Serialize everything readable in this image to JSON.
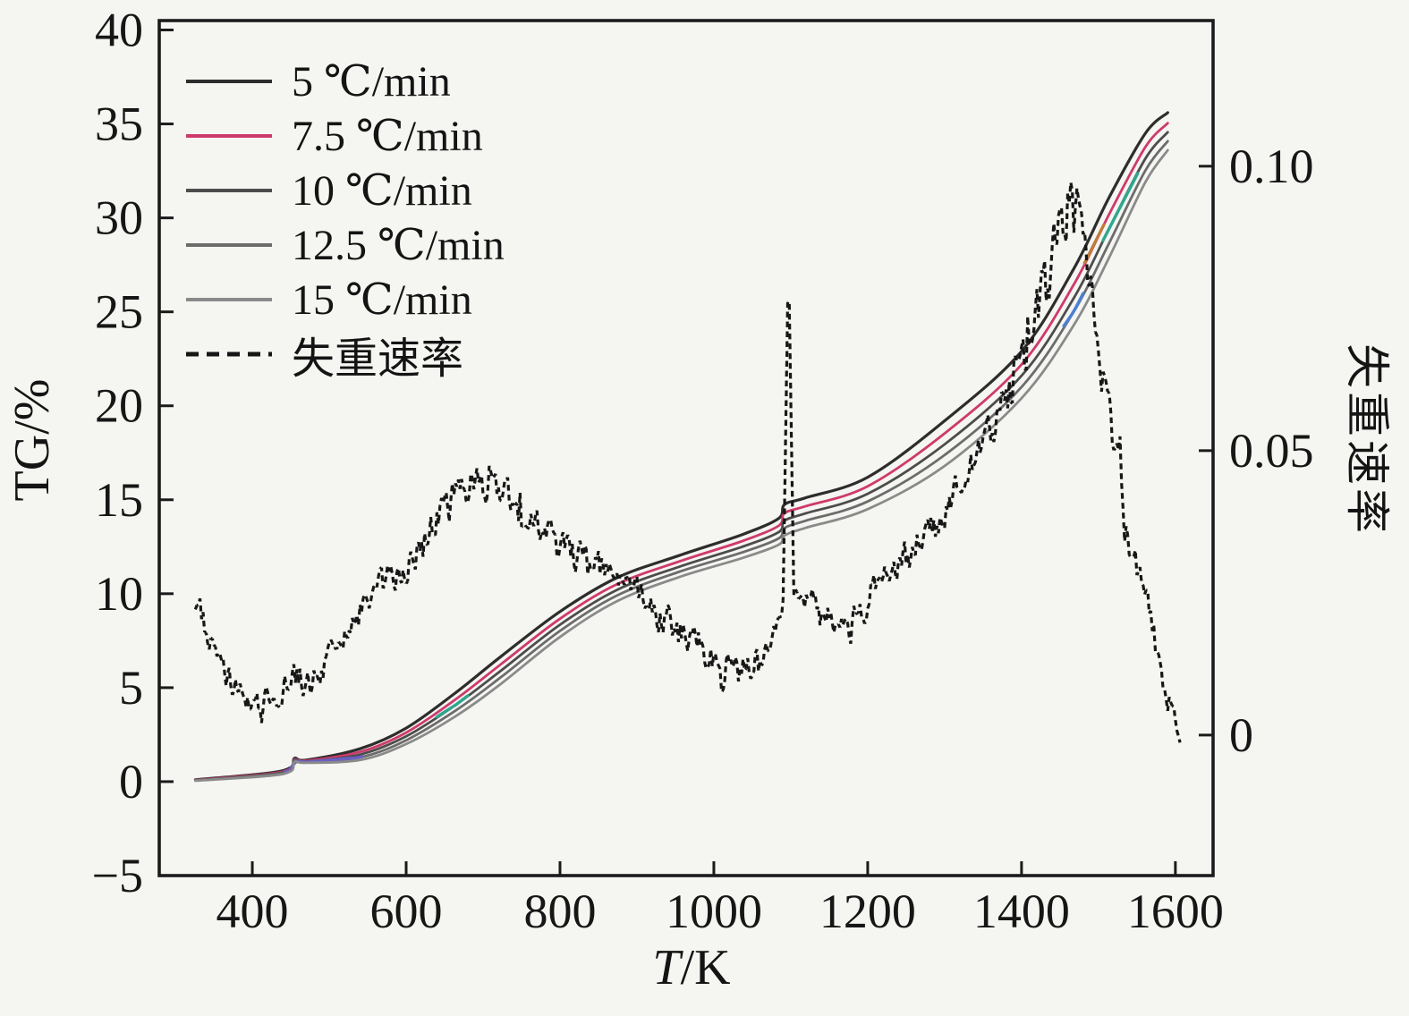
{
  "figure": {
    "background": "#f5f5f2",
    "axis_color": "#1b1b1b",
    "x_axis": {
      "title_var": "T",
      "title_unit": "/K",
      "ticks": [
        {
          "label": "400",
          "value": 400
        },
        {
          "label": "600",
          "value": 600
        },
        {
          "label": "800",
          "value": 800
        },
        {
          "label": "1000",
          "value": 1000
        },
        {
          "label": "1200",
          "value": 1200
        },
        {
          "label": "1400",
          "value": 1400
        },
        {
          "label": "1600",
          "value": 1600
        }
      ]
    },
    "y_left": {
      "title": "TG/%",
      "ticks": [
        {
          "label": "40",
          "value": 40
        },
        {
          "label": "35",
          "value": 35
        },
        {
          "label": "30",
          "value": 30
        },
        {
          "label": "25",
          "value": 25
        },
        {
          "label": "20",
          "value": 20
        },
        {
          "label": "15",
          "value": 15
        },
        {
          "label": "10",
          "value": 10
        },
        {
          "label": "5",
          "value": 5
        },
        {
          "label": "0",
          "value": 0
        },
        {
          "label": "−5",
          "value": -5
        }
      ]
    },
    "y_right": {
      "title": "失重速率",
      "ticks": [
        {
          "label": "0.10",
          "value": 0.1
        },
        {
          "label": "0.05",
          "value": 0.05
        },
        {
          "label": "0",
          "value": 0
        }
      ]
    }
  },
  "legend": {
    "items": [
      {
        "label": "5 ℃/min",
        "color": "#2d2d2d",
        "dash": false
      },
      {
        "label": "7.5 ℃/min",
        "color": "#ce3a6b",
        "dash": false
      },
      {
        "label": "10 ℃/min",
        "color": "#4c4c4c",
        "dash": false
      },
      {
        "label": "12.5 ℃/min",
        "color": "#6c6c6c",
        "dash": false
      },
      {
        "label": "15 ℃/min",
        "color": "#8a8a8a",
        "dash": false
      },
      {
        "label": "失重速率",
        "color": "#161616",
        "dash": true
      }
    ]
  },
  "chart_data": {
    "type": "line",
    "title": "",
    "xlabel": "T/K",
    "ylabel_left": "TG/%",
    "ylabel_right": "失重速率",
    "xlim": [
      279,
      1649
    ],
    "ylim_left": [
      -5,
      40.5
    ],
    "ylim_right": [
      -0.0247,
      0.1256
    ],
    "grid": false,
    "legend_position": "upper-left",
    "series": [
      {
        "name": "5 ℃/min",
        "axis": "left",
        "color": "#2d2d2d",
        "width": 3.2,
        "accents": [],
        "points": [
          [
            326,
            0.1
          ],
          [
            420,
            0.45
          ],
          [
            450,
            0.75
          ],
          [
            455,
            1.25
          ],
          [
            470,
            1.15
          ],
          [
            540,
            1.75
          ],
          [
            600,
            2.85
          ],
          [
            665,
            4.75
          ],
          [
            723,
            6.65
          ],
          [
            800,
            9.05
          ],
          [
            874,
            10.85
          ],
          [
            956,
            12.05
          ],
          [
            1037,
            13.15
          ],
          [
            1084,
            14.0
          ],
          [
            1092,
            14.75
          ],
          [
            1119,
            15.1
          ],
          [
            1200,
            16.2
          ],
          [
            1300,
            19.2
          ],
          [
            1400,
            22.9
          ],
          [
            1468,
            27.3
          ],
          [
            1514,
            31.1
          ],
          [
            1561,
            34.5
          ],
          [
            1590,
            35.6
          ]
        ]
      },
      {
        "name": "7.5 ℃/min",
        "axis": "left",
        "color": "#ce3a6b",
        "width": 2.8,
        "accents": [
          {
            "from": 1482,
            "to": 1508,
            "color": "#c07a3a"
          }
        ],
        "points": [
          [
            326,
            0.09
          ],
          [
            420,
            0.41
          ],
          [
            450,
            0.69
          ],
          [
            455,
            1.19
          ],
          [
            470,
            1.11
          ],
          [
            540,
            1.58
          ],
          [
            600,
            2.61
          ],
          [
            665,
            4.4
          ],
          [
            723,
            6.24
          ],
          [
            800,
            8.67
          ],
          [
            874,
            10.5
          ],
          [
            956,
            11.73
          ],
          [
            1037,
            12.8
          ],
          [
            1084,
            13.61
          ],
          [
            1092,
            14.29
          ],
          [
            1119,
            14.65
          ],
          [
            1200,
            15.72
          ],
          [
            1300,
            18.53
          ],
          [
            1400,
            22.2
          ],
          [
            1468,
            26.46
          ],
          [
            1514,
            30.2
          ],
          [
            1561,
            33.77
          ],
          [
            1590,
            35.04
          ]
        ]
      },
      {
        "name": "10 ℃/min",
        "axis": "left",
        "color": "#4c4c4c",
        "width": 2.8,
        "accents": [
          {
            "from": 640,
            "to": 680,
            "color": "#2fa78f"
          },
          {
            "from": 1506,
            "to": 1552,
            "color": "#2fa78f"
          }
        ],
        "points": [
          [
            326,
            0.07
          ],
          [
            420,
            0.37
          ],
          [
            450,
            0.65
          ],
          [
            455,
            1.15
          ],
          [
            470,
            1.07
          ],
          [
            540,
            1.44
          ],
          [
            600,
            2.41
          ],
          [
            665,
            4.1
          ],
          [
            723,
            5.9
          ],
          [
            800,
            8.35
          ],
          [
            874,
            10.2
          ],
          [
            956,
            11.45
          ],
          [
            1037,
            12.5
          ],
          [
            1084,
            13.27
          ],
          [
            1092,
            13.89
          ],
          [
            1119,
            14.27
          ],
          [
            1200,
            15.32
          ],
          [
            1300,
            17.95
          ],
          [
            1400,
            21.6
          ],
          [
            1468,
            25.74
          ],
          [
            1514,
            29.44
          ],
          [
            1561,
            33.15
          ],
          [
            1590,
            34.56
          ]
        ]
      },
      {
        "name": "12.5 ℃/min",
        "axis": "left",
        "color": "#6c6c6c",
        "width": 2.8,
        "accents": [
          {
            "from": 443,
            "to": 545,
            "color": "#6a5fc1"
          },
          {
            "from": 1455,
            "to": 1480,
            "color": "#4b7fd4"
          }
        ],
        "points": [
          [
            326,
            0.06
          ],
          [
            420,
            0.34
          ],
          [
            450,
            0.6
          ],
          [
            455,
            1.1
          ],
          [
            470,
            1.04
          ],
          [
            540,
            1.29
          ],
          [
            600,
            2.2
          ],
          [
            665,
            3.8
          ],
          [
            723,
            5.55
          ],
          [
            800,
            8.02
          ],
          [
            874,
            9.9
          ],
          [
            956,
            11.18
          ],
          [
            1037,
            12.2
          ],
          [
            1084,
            12.94
          ],
          [
            1092,
            13.5
          ],
          [
            1119,
            13.88
          ],
          [
            1200,
            14.91
          ],
          [
            1300,
            17.38
          ],
          [
            1400,
            21.0
          ],
          [
            1468,
            25.02
          ],
          [
            1514,
            28.67
          ],
          [
            1561,
            32.52
          ],
          [
            1590,
            34.08
          ]
        ]
      },
      {
        "name": "15 ℃/min",
        "axis": "left",
        "color": "#8a8a8a",
        "width": 2.8,
        "accents": [],
        "points": [
          [
            326,
            0.05
          ],
          [
            420,
            0.3
          ],
          [
            450,
            0.55
          ],
          [
            455,
            1.05
          ],
          [
            470,
            1.0
          ],
          [
            540,
            1.15
          ],
          [
            600,
            2.0
          ],
          [
            665,
            3.5
          ],
          [
            723,
            5.2
          ],
          [
            800,
            7.7
          ],
          [
            874,
            9.6
          ],
          [
            956,
            10.9
          ],
          [
            1037,
            11.9
          ],
          [
            1084,
            12.6
          ],
          [
            1092,
            13.1
          ],
          [
            1119,
            13.5
          ],
          [
            1200,
            14.5
          ],
          [
            1300,
            16.8
          ],
          [
            1400,
            20.4
          ],
          [
            1468,
            24.3
          ],
          [
            1514,
            27.9
          ],
          [
            1561,
            31.9
          ],
          [
            1590,
            33.6
          ]
        ]
      }
    ],
    "rate_series": {
      "name": "失重速率",
      "axis": "right",
      "color": "#171717",
      "style": "noisy-dashed",
      "points": [
        [
          326,
          0.024
        ],
        [
          345,
          0.016
        ],
        [
          370,
          0.009
        ],
        [
          400,
          0.005
        ],
        [
          430,
          0.007
        ],
        [
          455,
          0.011
        ],
        [
          470,
          0.009
        ],
        [
          500,
          0.013
        ],
        [
          530,
          0.019
        ],
        [
          560,
          0.026
        ],
        [
          600,
          0.03
        ],
        [
          640,
          0.038
        ],
        [
          670,
          0.0435
        ],
        [
          700,
          0.0445
        ],
        [
          730,
          0.042
        ],
        [
          770,
          0.037
        ],
        [
          800,
          0.0325
        ],
        [
          840,
          0.03
        ],
        [
          875,
          0.028
        ],
        [
          910,
          0.024
        ],
        [
          950,
          0.019
        ],
        [
          985,
          0.015
        ],
        [
          1020,
          0.0115
        ],
        [
          1050,
          0.011
        ],
        [
          1075,
          0.016
        ],
        [
          1090,
          0.024
        ],
        [
          1097,
          0.0855
        ],
        [
          1104,
          0.025
        ],
        [
          1125,
          0.0235
        ],
        [
          1150,
          0.0215
        ],
        [
          1175,
          0.019
        ],
        [
          1210,
          0.026
        ],
        [
          1250,
          0.031
        ],
        [
          1290,
          0.037
        ],
        [
          1330,
          0.046
        ],
        [
          1365,
          0.055
        ],
        [
          1400,
          0.065
        ],
        [
          1425,
          0.076
        ],
        [
          1447,
          0.09
        ],
        [
          1462,
          0.0955
        ],
        [
          1475,
          0.089
        ],
        [
          1492,
          0.076
        ],
        [
          1510,
          0.06
        ],
        [
          1532,
          0.043
        ],
        [
          1555,
          0.027
        ],
        [
          1578,
          0.013
        ],
        [
          1596,
          0.004
        ],
        [
          1606,
          0.002
        ]
      ]
    },
    "noise_band": [
      [
        326,
        0.004
      ],
      [
        400,
        0.0045
      ],
      [
        500,
        0.004
      ],
      [
        600,
        0.0045
      ],
      [
        680,
        0.005
      ],
      [
        800,
        0.0045
      ],
      [
        900,
        0.0045
      ],
      [
        1000,
        0.005
      ],
      [
        1060,
        0.005
      ],
      [
        1090,
        0.0015
      ],
      [
        1104,
        0.0015
      ],
      [
        1130,
        0.004
      ],
      [
        1200,
        0.0045
      ],
      [
        1300,
        0.0045
      ],
      [
        1380,
        0.006
      ],
      [
        1430,
        0.009
      ],
      [
        1465,
        0.01
      ],
      [
        1500,
        0.008
      ],
      [
        1540,
        0.006
      ],
      [
        1606,
        0.004
      ]
    ]
  }
}
